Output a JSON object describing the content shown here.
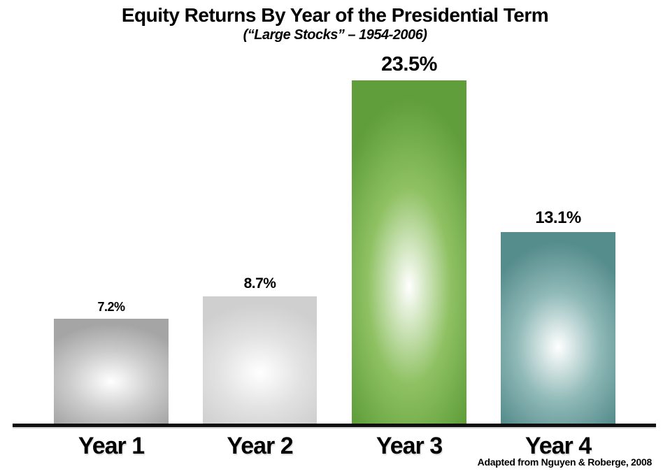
{
  "chart_data": {
    "type": "bar",
    "title": "Equity Returns By Year of the Presidential Term",
    "subtitle": "(“Large Stocks” – 1954-2006)",
    "categories": [
      "Year 1",
      "Year 2",
      "Year 3",
      "Year 4"
    ],
    "values": [
      7.2,
      8.7,
      23.5,
      13.1
    ],
    "value_labels": [
      "7.2%",
      "8.7%",
      "23.5%",
      "13.1%"
    ],
    "bar_colors_edge": [
      "#a5a5a5",
      "#cfcfcf",
      "#5f9e3a",
      "#558c8c"
    ],
    "bar_colors_mid": [
      "#cccccc",
      "#e2e2e2",
      "#8fc163",
      "#8fb9b7"
    ],
    "bar_highlight": "#ffffff",
    "axis_color": "#101010",
    "xlabel": "",
    "ylabel": "",
    "ylim": [
      0,
      25
    ],
    "grid": false,
    "legend": false,
    "attribution": "Adapted from Nguyen & Roberge, 2008"
  }
}
